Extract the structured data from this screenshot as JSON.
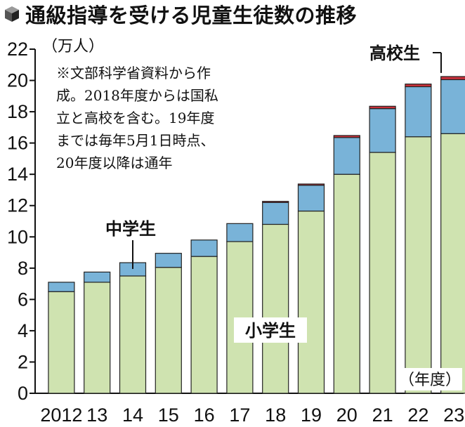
{
  "title": "通級指導を受ける児童生徒数の推移",
  "unit": "（万人）",
  "note_lines": [
    "※文部科学省資料から作",
    "成。2018年度からは国私",
    "立と高校を含む。19年度",
    "までは毎年5月1日時点、",
    "20年度以降は通年"
  ],
  "xunit": "（年度）",
  "colors": {
    "elementary": "#cfe3b0",
    "junior_high": "#79b3d8",
    "high_school": "#c8303a",
    "border": "#222222"
  },
  "chart_data": {
    "type": "bar",
    "stacked": true,
    "title": "通級指導を受ける児童生徒数の推移",
    "ylabel": "（万人）",
    "xlabel": "（年度）",
    "ylim": [
      0,
      22
    ],
    "yticks": [
      0,
      2,
      4,
      6,
      8,
      10,
      12,
      14,
      16,
      18,
      20,
      22
    ],
    "categories": [
      "2012",
      "13",
      "14",
      "15",
      "16",
      "17",
      "18",
      "19",
      "20",
      "21",
      "22",
      "23"
    ],
    "series": [
      {
        "name": "小学生",
        "values": [
          6.5,
          7.1,
          7.5,
          8.05,
          8.75,
          9.7,
          10.8,
          11.65,
          14.0,
          15.4,
          16.4,
          16.6
        ]
      },
      {
        "name": "中学生",
        "values": [
          0.6,
          0.65,
          0.85,
          0.9,
          1.05,
          1.15,
          1.4,
          1.65,
          2.35,
          2.8,
          3.2,
          3.45
        ]
      },
      {
        "name": "高校生",
        "values": [
          0,
          0,
          0,
          0,
          0,
          0,
          0.07,
          0.08,
          0.13,
          0.15,
          0.17,
          0.2
        ]
      }
    ],
    "grid": false,
    "legend": "labels-on-chart"
  }
}
